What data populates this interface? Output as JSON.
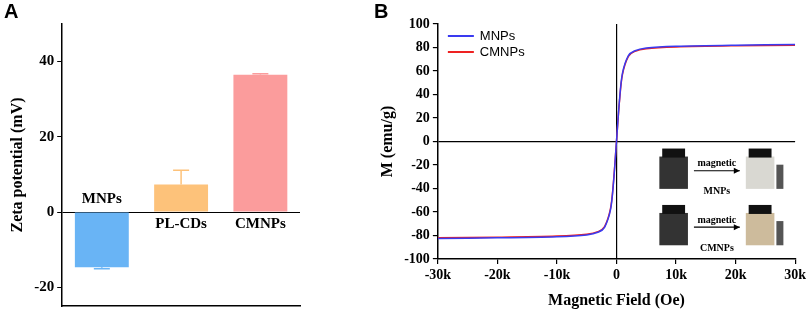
{
  "chart_data": [
    {
      "type": "bar",
      "panel": "A",
      "y_label": "Zeta potential (mV)",
      "categories": [
        "MNPs",
        "PL-CDs",
        "CMNPs"
      ],
      "values": [
        -14.7,
        7.3,
        36.5
      ],
      "errors": [
        0.4,
        3.8,
        0.3
      ],
      "colors": [
        "#69b4f5",
        "#fdc27a",
        "#fb9c9c"
      ],
      "ylim": [
        -25,
        50
      ],
      "yticks": [
        -20,
        0,
        20,
        40
      ],
      "grid": false,
      "tick_labels": "y"
    },
    {
      "type": "line",
      "panel": "B",
      "x_label": "Magnetic Field (Oe)",
      "y_label": "M (emu/g)",
      "x": [
        -30000,
        -20000,
        -10000,
        -5000,
        -3000,
        -2000,
        -1000,
        -500,
        0,
        500,
        1000,
        2000,
        3000,
        5000,
        10000,
        20000,
        30000
      ],
      "series": [
        {
          "name": "MNPs",
          "color": "#3a3af0",
          "values": [
            -82.5,
            -82,
            -81,
            -79.5,
            -77,
            -73,
            -58,
            -35,
            0,
            35,
            58,
            73,
            77,
            79.5,
            81,
            82,
            82.5
          ]
        },
        {
          "name": "CMNPs",
          "color": "#ee2222",
          "values": [
            -82,
            -81.5,
            -80.5,
            -79,
            -76.5,
            -72.5,
            -57,
            -34,
            0,
            34,
            57,
            72.5,
            76.5,
            79,
            80.5,
            81.5,
            82
          ]
        }
      ],
      "xlim": [
        -30000,
        30000
      ],
      "xticks": [
        {
          "value": -30000,
          "label": "-30k"
        },
        {
          "value": -20000,
          "label": "-20k"
        },
        {
          "value": -10000,
          "label": "-10k"
        },
        0,
        {
          "value": 10000,
          "label": "10k"
        },
        {
          "value": 20000,
          "label": "20k"
        },
        {
          "value": 30000,
          "label": "30k"
        }
      ],
      "ylim": [
        -100,
        100
      ],
      "yticks": [
        -100,
        -80,
        -60,
        -40,
        -20,
        0,
        20,
        40,
        60,
        80,
        100
      ],
      "grid": false,
      "legend": "upper left",
      "annotations": [
        {
          "label": "MNPs",
          "arrow_text": "magnetic"
        },
        {
          "label": "CMNPs",
          "arrow_text": "magnetic"
        }
      ]
    }
  ]
}
